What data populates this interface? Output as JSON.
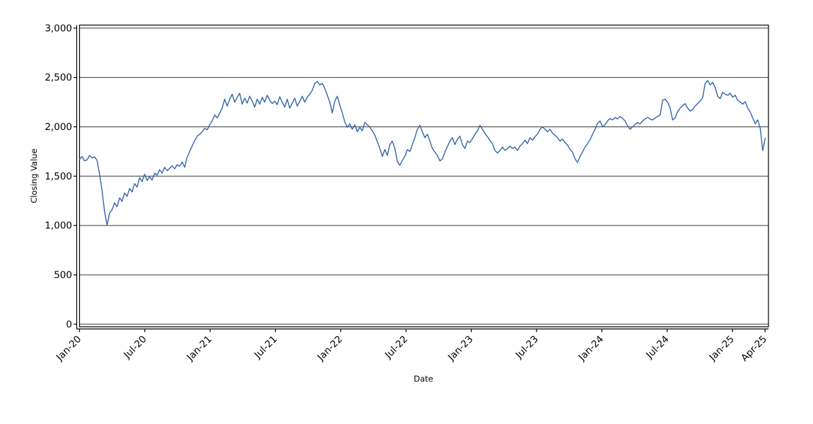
{
  "chart_data": {
    "type": "line",
    "title": "",
    "xlabel": "Date",
    "ylabel": "Closing Value",
    "legend": "none",
    "grid": "horizontal",
    "ylim": [
      0,
      3000
    ],
    "y_tick_values": [
      0,
      500,
      1000,
      1500,
      2000,
      2500,
      3000
    ],
    "y_tick_labels": [
      "0",
      "500",
      "1,000",
      "1,500",
      "2,000",
      "2,500",
      "3,000"
    ],
    "x_tick_labels": [
      "Jan-20",
      "Jul-20",
      "Jan-21",
      "Jul-21",
      "Jan-22",
      "Jul-22",
      "Jan-23",
      "Jul-23",
      "Jan-24",
      "Jul-24",
      "Jan-25",
      "Apr-25"
    ],
    "x_tick_month_offsets": [
      0,
      6,
      12,
      18,
      24,
      30,
      36,
      42,
      48,
      54,
      60,
      63
    ],
    "x_range_months": 63.3,
    "axis_color": "#000000",
    "grid_color": "#3a3a3a",
    "series": [
      {
        "name": "Closing Value",
        "color": "#3465a8",
        "start": "Jan-2020",
        "interval": "weekly",
        "values": [
          1670,
          1700,
          1655,
          1665,
          1710,
          1685,
          1695,
          1660,
          1520,
          1355,
          1140,
          1005,
          1125,
          1160,
          1230,
          1190,
          1280,
          1245,
          1330,
          1295,
          1375,
          1340,
          1425,
          1390,
          1485,
          1445,
          1520,
          1455,
          1495,
          1460,
          1530,
          1510,
          1565,
          1530,
          1590,
          1555,
          1580,
          1605,
          1575,
          1615,
          1600,
          1645,
          1590,
          1690,
          1750,
          1805,
          1860,
          1905,
          1925,
          1950,
          1985,
          1970,
          2020,
          2060,
          2120,
          2090,
          2140,
          2190,
          2280,
          2210,
          2280,
          2330,
          2250,
          2300,
          2340,
          2230,
          2290,
          2240,
          2310,
          2260,
          2200,
          2280,
          2230,
          2300,
          2250,
          2320,
          2270,
          2235,
          2260,
          2225,
          2305,
          2250,
          2200,
          2280,
          2190,
          2240,
          2290,
          2210,
          2260,
          2310,
          2250,
          2300,
          2330,
          2370,
          2440,
          2460,
          2425,
          2440,
          2390,
          2320,
          2250,
          2140,
          2260,
          2310,
          2220,
          2140,
          2050,
          1995,
          2030,
          1975,
          2020,
          1950,
          1995,
          1960,
          2045,
          2020,
          1995,
          1960,
          1915,
          1850,
          1780,
          1700,
          1770,
          1710,
          1820,
          1855,
          1780,
          1650,
          1610,
          1660,
          1700,
          1770,
          1750,
          1820,
          1890,
          1975,
          2015,
          1950,
          1890,
          1925,
          1855,
          1780,
          1745,
          1710,
          1655,
          1675,
          1745,
          1800,
          1855,
          1890,
          1820,
          1875,
          1905,
          1820,
          1780,
          1855,
          1840,
          1880,
          1925,
          1960,
          2015,
          1975,
          1935,
          1900,
          1860,
          1830,
          1760,
          1735,
          1760,
          1795,
          1760,
          1780,
          1805,
          1780,
          1795,
          1760,
          1805,
          1830,
          1865,
          1830,
          1890,
          1865,
          1900,
          1925,
          1975,
          2000,
          1975,
          1950,
          1975,
          1935,
          1915,
          1890,
          1855,
          1875,
          1840,
          1815,
          1770,
          1745,
          1675,
          1640,
          1700,
          1745,
          1795,
          1830,
          1870,
          1925,
          1975,
          2035,
          2060,
          2000,
          2020,
          2060,
          2085,
          2070,
          2095,
          2080,
          2105,
          2085,
          2060,
          2010,
          1975,
          2000,
          2025,
          2045,
          2030,
          2060,
          2080,
          2095,
          2080,
          2070,
          2090,
          2105,
          2120,
          2270,
          2280,
          2250,
          2190,
          2070,
          2090,
          2155,
          2190,
          2215,
          2235,
          2190,
          2160,
          2175,
          2210,
          2235,
          2260,
          2295,
          2440,
          2470,
          2425,
          2450,
          2400,
          2310,
          2285,
          2350,
          2330,
          2320,
          2340,
          2300,
          2320,
          2270,
          2250,
          2230,
          2255,
          2190,
          2150,
          2090,
          2030,
          2070,
          1985,
          1760,
          1885
        ]
      }
    ]
  }
}
